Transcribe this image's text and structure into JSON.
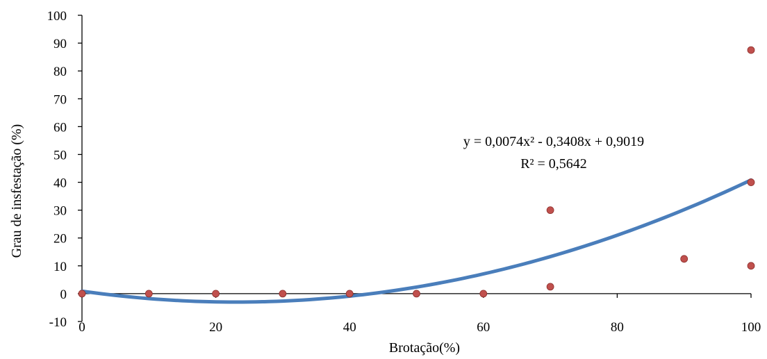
{
  "chart_data": {
    "type": "scatter",
    "xlabel": "Brotação(%)",
    "ylabel": "Grau de insfestação (%)",
    "xlim": [
      0,
      100
    ],
    "ylim": [
      -10,
      100
    ],
    "x_ticks": [
      "0",
      "20",
      "40",
      "60",
      "80",
      "100"
    ],
    "y_ticks": [
      "-10",
      "0",
      "10",
      "20",
      "30",
      "40",
      "50",
      "60",
      "70",
      "80",
      "90",
      "100"
    ],
    "grid": false,
    "series": [
      {
        "points": [
          {
            "x": 0,
            "y": 0
          },
          {
            "x": 10,
            "y": 0
          },
          {
            "x": 20,
            "y": 0
          },
          {
            "x": 30,
            "y": 0
          },
          {
            "x": 40,
            "y": 0
          },
          {
            "x": 50,
            "y": 0
          },
          {
            "x": 60,
            "y": 0
          },
          {
            "x": 70,
            "y": 30
          },
          {
            "x": 70,
            "y": 2.5
          },
          {
            "x": 90,
            "y": 12.5
          },
          {
            "x": 100,
            "y": 87.5
          },
          {
            "x": 100,
            "y": 40
          },
          {
            "x": 100,
            "y": 10
          }
        ],
        "color": "#c0504d"
      }
    ],
    "trendline": {
      "type": "polynomial",
      "coefficients": [
        0.0074,
        -0.3408,
        0.9019
      ],
      "color": "#4a7ebb"
    },
    "annotations": {
      "equation": "y = 0,0074x² - 0,3408x + 0,9019",
      "r_squared": "R² = 0,5642"
    }
  }
}
